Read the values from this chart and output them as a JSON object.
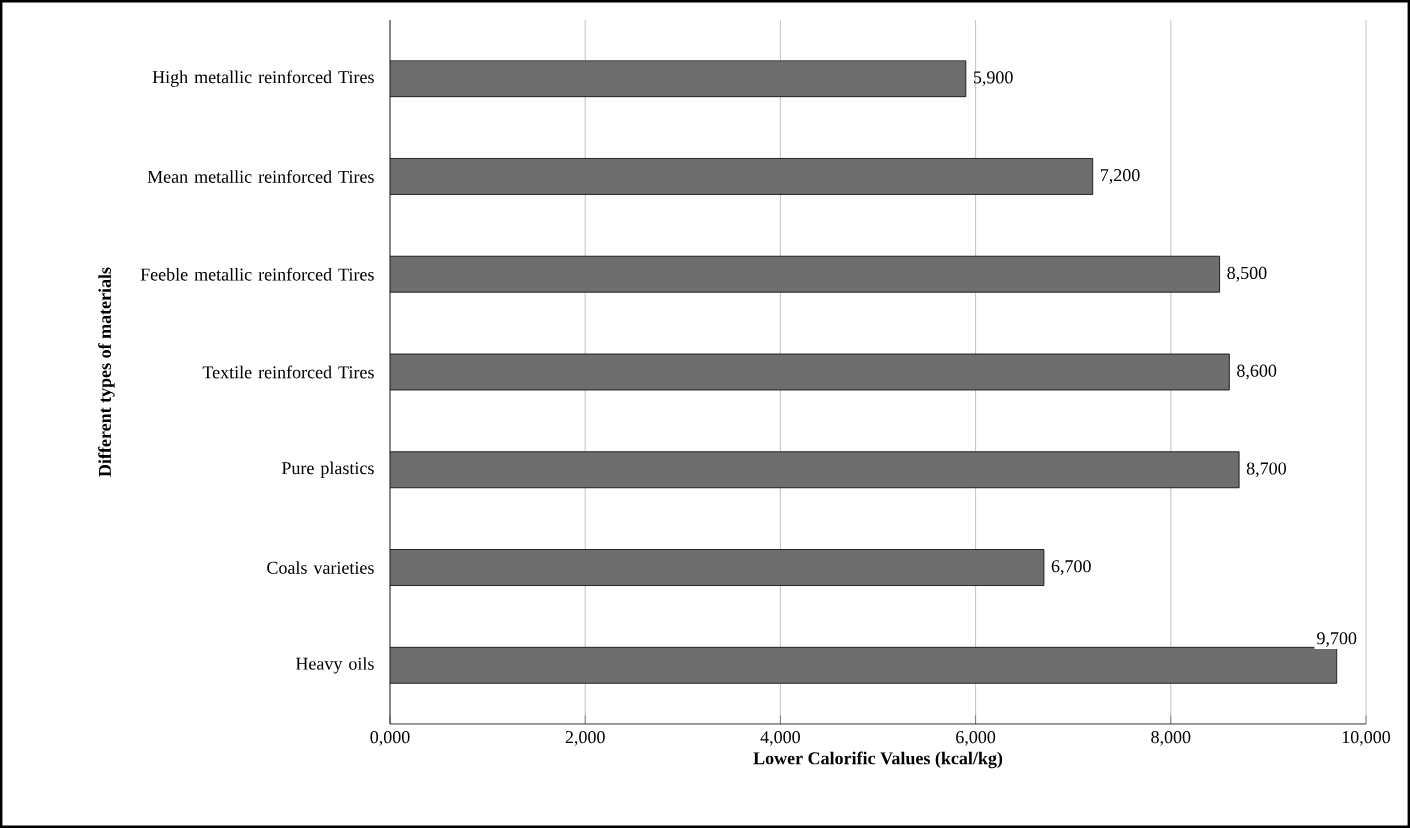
{
  "chart_data": {
    "type": "bar",
    "orientation": "horizontal",
    "xlabel": "Lower Calorific Values (kcal/kg)",
    "ylabel": "Different types of materials",
    "categories": [
      "High metallic reinforced Tires",
      "Mean metallic reinforced Tires",
      "Feeble metallic reinforced Tires",
      "Textile reinforced Tires",
      "Pure plastics",
      "Coals varieties",
      "Heavy oils"
    ],
    "values": [
      5900,
      7200,
      8500,
      8600,
      8700,
      6700,
      9700
    ],
    "value_labels": [
      "5,900",
      "7,200",
      "8,500",
      "8,600",
      "8,700",
      "6,700",
      "9,700"
    ],
    "color": "#6e6e6e",
    "xlim": [
      0,
      10000
    ],
    "xticks": [
      {
        "value": 0,
        "label": "0,000"
      },
      {
        "value": 2000,
        "label": "2,000"
      },
      {
        "value": 4000,
        "label": "4,000"
      },
      {
        "value": 6000,
        "label": "6,000"
      },
      {
        "value": 8000,
        "label": "8,000"
      },
      {
        "value": 10000,
        "label": "10,000"
      }
    ],
    "grid": "x"
  }
}
